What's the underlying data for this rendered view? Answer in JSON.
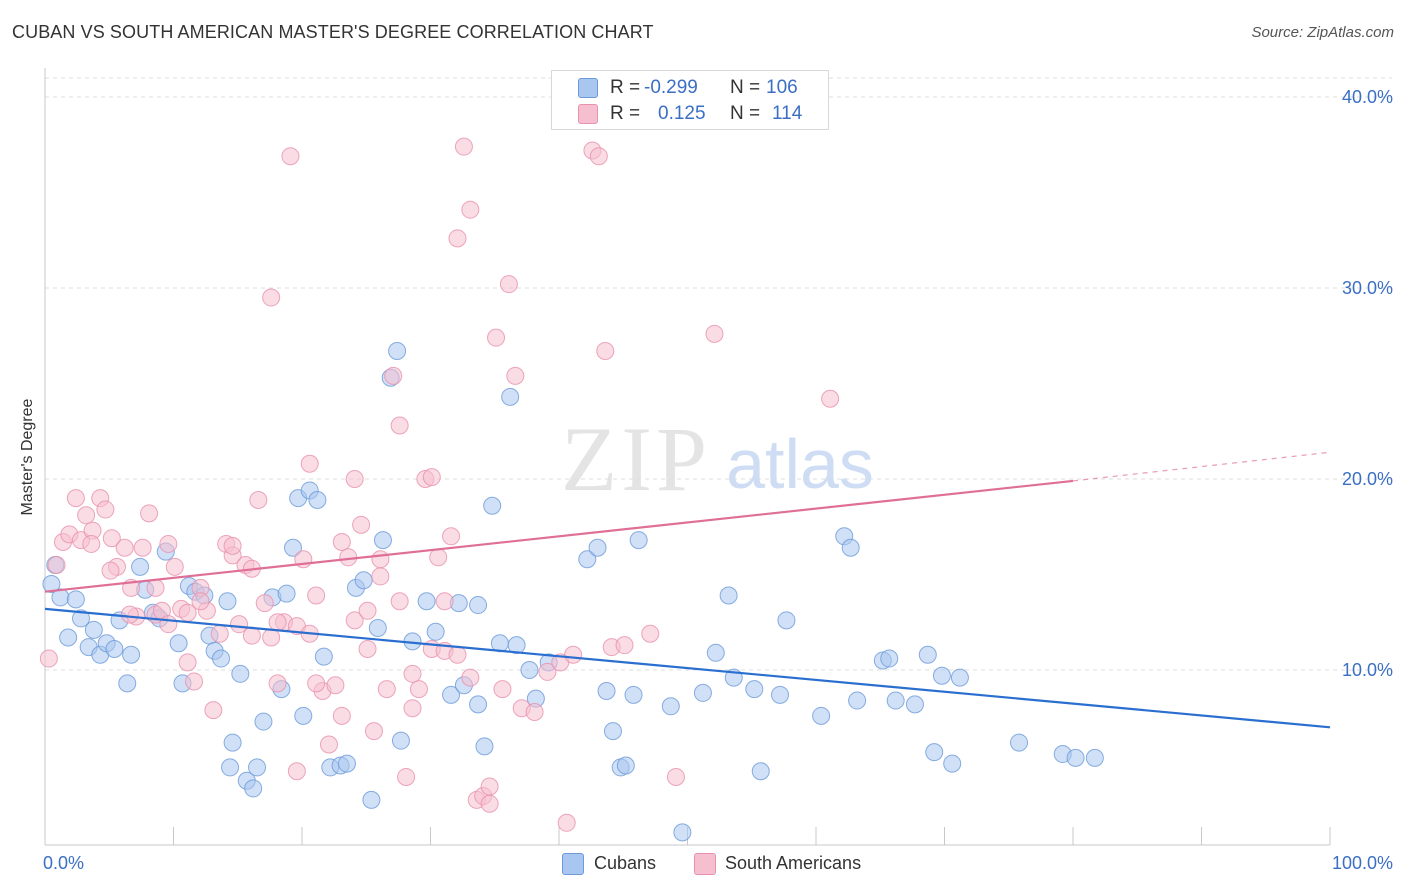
{
  "title": "CUBAN VS SOUTH AMERICAN MASTER'S DEGREE CORRELATION CHART",
  "source": "Source: ZipAtlas.com",
  "watermark": {
    "zip": "ZIP",
    "atlas": "atlas"
  },
  "legend": {
    "r_label": "R =",
    "n_label": "N =",
    "rows": [
      {
        "r": "-0.299",
        "n": "106",
        "color": "#a9c6f0",
        "border": "#6b9ad8"
      },
      {
        "r": "0.125",
        "n": "114",
        "color": "#f6bfd0",
        "border": "#e890ad"
      }
    ]
  },
  "bottom_legend": [
    {
      "label": "Cubans",
      "color": "#a9c6f0",
      "border": "#6b9ad8"
    },
    {
      "label": "South Americans",
      "color": "#f6bfd0",
      "border": "#e890ad"
    }
  ],
  "chart_data": {
    "type": "scatter",
    "ylabel": "Master's Degree",
    "xlim": [
      0,
      100
    ],
    "ylim": [
      0,
      40
    ],
    "x_tick_labels": [
      "0.0%",
      "100.0%"
    ],
    "y_ticks": [
      10,
      20,
      30,
      40
    ],
    "y_tick_labels": [
      "10.0%",
      "20.0%",
      "30.0%",
      "40.0%"
    ],
    "grid": true,
    "series": [
      {
        "name": "Cubans",
        "color": "#6b9ad8",
        "fill": "#a9c6f0",
        "line_color": "#2a6fd0",
        "trend": {
          "x0": 0,
          "y0": 13.2,
          "x1": 100,
          "y1": 7.0
        },
        "points": [
          [
            0.5,
            14.5
          ],
          [
            0.8,
            15.5
          ],
          [
            1.2,
            13.8
          ],
          [
            1.8,
            11.7
          ],
          [
            2.4,
            13.7
          ],
          [
            2.8,
            12.7
          ],
          [
            3.4,
            11.2
          ],
          [
            3.8,
            12.1
          ],
          [
            4.3,
            10.8
          ],
          [
            4.8,
            11.4
          ],
          [
            5.4,
            11.1
          ],
          [
            5.8,
            12.6
          ],
          [
            6.4,
            9.3
          ],
          [
            6.7,
            10.8
          ],
          [
            7.4,
            15.4
          ],
          [
            7.8,
            14.2
          ],
          [
            8.4,
            13.0
          ],
          [
            8.9,
            12.7
          ],
          [
            9.4,
            16.2
          ],
          [
            10.4,
            11.4
          ],
          [
            10.7,
            9.3
          ],
          [
            11.2,
            14.4
          ],
          [
            11.7,
            14.1
          ],
          [
            12.4,
            13.9
          ],
          [
            12.8,
            11.8
          ],
          [
            13.2,
            11.0
          ],
          [
            13.7,
            10.6
          ],
          [
            14.2,
            13.6
          ],
          [
            14.6,
            6.2
          ],
          [
            15.2,
            9.8
          ],
          [
            15.7,
            4.2
          ],
          [
            16.2,
            3.8
          ],
          [
            16.5,
            4.9
          ],
          [
            17.0,
            7.3
          ],
          [
            17.7,
            13.8
          ],
          [
            18.4,
            9.0
          ],
          [
            18.8,
            14.0
          ],
          [
            19.3,
            16.4
          ],
          [
            19.7,
            19.0
          ],
          [
            20.1,
            7.6
          ],
          [
            20.6,
            19.4
          ],
          [
            21.2,
            18.9
          ],
          [
            21.7,
            10.7
          ],
          [
            22.2,
            4.9
          ],
          [
            23.0,
            5.0
          ],
          [
            23.5,
            5.1
          ],
          [
            24.2,
            14.3
          ],
          [
            24.8,
            14.7
          ],
          [
            25.4,
            3.2
          ],
          [
            25.9,
            12.2
          ],
          [
            26.3,
            16.8
          ],
          [
            26.9,
            25.3
          ],
          [
            27.4,
            26.7
          ],
          [
            27.7,
            6.3
          ],
          [
            28.6,
            11.5
          ],
          [
            29.7,
            13.6
          ],
          [
            30.4,
            12.0
          ],
          [
            31.6,
            8.7
          ],
          [
            32.2,
            13.5
          ],
          [
            32.6,
            9.2
          ],
          [
            33.7,
            8.2
          ],
          [
            34.2,
            6.0
          ],
          [
            34.8,
            18.6
          ],
          [
            35.4,
            11.4
          ],
          [
            36.2,
            24.3
          ],
          [
            36.7,
            11.3
          ],
          [
            37.7,
            10.0
          ],
          [
            38.2,
            8.5
          ],
          [
            39.2,
            10.4
          ],
          [
            42.2,
            15.8
          ],
          [
            43.0,
            16.4
          ],
          [
            43.7,
            8.9
          ],
          [
            44.2,
            6.8
          ],
          [
            44.8,
            4.9
          ],
          [
            45.2,
            5.0
          ],
          [
            45.8,
            8.7
          ],
          [
            46.2,
            16.8
          ],
          [
            48.7,
            8.1
          ],
          [
            49.6,
            1.5
          ],
          [
            51.2,
            8.8
          ],
          [
            52.2,
            10.9
          ],
          [
            53.2,
            13.9
          ],
          [
            53.6,
            9.6
          ],
          [
            55.2,
            9.0
          ],
          [
            55.7,
            4.7
          ],
          [
            57.2,
            8.7
          ],
          [
            57.7,
            12.6
          ],
          [
            60.4,
            7.6
          ],
          [
            62.2,
            17.0
          ],
          [
            62.7,
            16.4
          ],
          [
            63.2,
            8.4
          ],
          [
            65.2,
            10.5
          ],
          [
            65.7,
            10.6
          ],
          [
            66.2,
            8.4
          ],
          [
            67.7,
            8.2
          ],
          [
            68.7,
            10.8
          ],
          [
            69.2,
            5.7
          ],
          [
            69.8,
            9.7
          ],
          [
            70.6,
            5.1
          ],
          [
            71.2,
            9.6
          ],
          [
            75.8,
            6.2
          ],
          [
            79.2,
            5.6
          ],
          [
            80.2,
            5.4
          ],
          [
            81.7,
            5.4
          ],
          [
            33.7,
            13.4
          ],
          [
            14.4,
            4.9
          ]
        ]
      },
      {
        "name": "South Americans",
        "color": "#e890ad",
        "fill": "#f6bfd0",
        "line_color": "#e06f97",
        "trend": {
          "x0": 0,
          "y0": 14.1,
          "x1": 80,
          "y1": 19.9
        },
        "trend_dashed": {
          "x0": 80,
          "y0": 19.9,
          "x1": 100,
          "y1": 21.4
        },
        "points": [
          [
            0.3,
            10.6
          ],
          [
            0.9,
            15.5
          ],
          [
            1.4,
            16.7
          ],
          [
            1.9,
            17.1
          ],
          [
            2.4,
            19.0
          ],
          [
            2.8,
            16.8
          ],
          [
            3.2,
            18.1
          ],
          [
            3.7,
            17.3
          ],
          [
            4.3,
            19.0
          ],
          [
            4.7,
            18.4
          ],
          [
            5.2,
            16.9
          ],
          [
            5.6,
            15.4
          ],
          [
            6.2,
            16.4
          ],
          [
            6.7,
            14.3
          ],
          [
            7.1,
            12.8
          ],
          [
            7.6,
            16.4
          ],
          [
            8.1,
            18.2
          ],
          [
            8.6,
            12.9
          ],
          [
            9.1,
            13.1
          ],
          [
            9.6,
            16.6
          ],
          [
            10.1,
            15.4
          ],
          [
            10.6,
            13.2
          ],
          [
            11.1,
            10.4
          ],
          [
            11.6,
            9.4
          ],
          [
            12.1,
            14.3
          ],
          [
            12.6,
            13.1
          ],
          [
            13.1,
            7.9
          ],
          [
            13.6,
            11.9
          ],
          [
            14.1,
            16.6
          ],
          [
            14.6,
            16.0
          ],
          [
            15.1,
            12.4
          ],
          [
            15.6,
            15.5
          ],
          [
            16.1,
            15.3
          ],
          [
            16.6,
            18.9
          ],
          [
            17.1,
            13.5
          ],
          [
            17.6,
            11.7
          ],
          [
            18.1,
            9.3
          ],
          [
            18.6,
            12.5
          ],
          [
            19.1,
            36.9
          ],
          [
            19.6,
            4.7
          ],
          [
            20.1,
            15.8
          ],
          [
            20.6,
            20.8
          ],
          [
            21.1,
            13.9
          ],
          [
            21.6,
            8.9
          ],
          [
            22.1,
            6.1
          ],
          [
            22.6,
            9.2
          ],
          [
            23.1,
            16.7
          ],
          [
            23.6,
            15.9
          ],
          [
            24.1,
            20.0
          ],
          [
            24.6,
            17.6
          ],
          [
            25.1,
            11.1
          ],
          [
            25.6,
            6.8
          ],
          [
            26.1,
            15.8
          ],
          [
            26.6,
            9.0
          ],
          [
            27.1,
            25.4
          ],
          [
            27.6,
            22.8
          ],
          [
            28.1,
            4.4
          ],
          [
            28.6,
            8.0
          ],
          [
            29.1,
            9.0
          ],
          [
            29.6,
            20.0
          ],
          [
            30.1,
            11.1
          ],
          [
            30.6,
            15.9
          ],
          [
            31.1,
            13.6
          ],
          [
            31.6,
            17.0
          ],
          [
            32.1,
            32.6
          ],
          [
            32.6,
            37.4
          ],
          [
            33.1,
            34.1
          ],
          [
            33.6,
            3.2
          ],
          [
            34.1,
            3.4
          ],
          [
            34.6,
            3.9
          ],
          [
            35.1,
            27.4
          ],
          [
            35.6,
            9.0
          ],
          [
            36.1,
            30.2
          ],
          [
            36.6,
            25.4
          ],
          [
            37.1,
            8.0
          ],
          [
            38.1,
            7.8
          ],
          [
            39.1,
            9.9
          ],
          [
            40.1,
            10.4
          ],
          [
            40.6,
            2.0
          ],
          [
            41.1,
            10.8
          ],
          [
            42.6,
            37.2
          ],
          [
            43.1,
            36.9
          ],
          [
            43.6,
            26.7
          ],
          [
            44.1,
            11.2
          ],
          [
            45.1,
            11.3
          ],
          [
            47.1,
            11.9
          ],
          [
            49.1,
            4.4
          ],
          [
            52.1,
            27.6
          ],
          [
            61.1,
            24.2
          ],
          [
            8.6,
            14.3
          ],
          [
            9.6,
            12.4
          ],
          [
            11.1,
            13.0
          ],
          [
            12.1,
            13.6
          ],
          [
            14.6,
            16.5
          ],
          [
            16.1,
            11.8
          ],
          [
            17.6,
            29.5
          ],
          [
            18.1,
            12.5
          ],
          [
            19.6,
            12.3
          ],
          [
            20.6,
            11.9
          ],
          [
            21.1,
            9.3
          ],
          [
            23.1,
            7.6
          ],
          [
            24.1,
            12.6
          ],
          [
            25.1,
            13.1
          ],
          [
            26.1,
            14.9
          ],
          [
            27.6,
            13.6
          ],
          [
            28.6,
            9.8
          ],
          [
            30.1,
            20.1
          ],
          [
            31.1,
            11.0
          ],
          [
            32.1,
            10.8
          ],
          [
            33.1,
            9.6
          ],
          [
            34.6,
            3.0
          ],
          [
            6.6,
            12.9
          ],
          [
            5.1,
            15.2
          ],
          [
            3.6,
            16.6
          ]
        ]
      }
    ]
  }
}
